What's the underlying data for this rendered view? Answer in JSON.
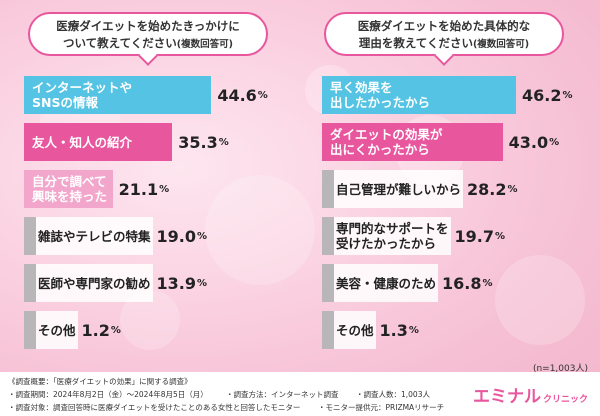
{
  "colors": {
    "blue": "#55c3e3",
    "pink": "#e8569e",
    "lightpink": "#f3a6cc",
    "gray": "#b8b6b8",
    "accent": "#e8569e"
  },
  "left_title": {
    "main": "医療ダイエットを始めたきっかけに",
    "sub": "ついて教えてください",
    "note": "(複数回答可)"
  },
  "right_title": {
    "main": "医療ダイエットを始めた具体的な",
    "sub": "理由を教えてください",
    "note": "(複数回答可)"
  },
  "chart_data": [
    {
      "type": "bar",
      "categories": [
        "インターネットやSNSの情報",
        "友人・知人の紹介",
        "自分で調べて興味を持った",
        "雑誌やテレビの特集",
        "医師や専門家の勧め",
        "その他"
      ],
      "labels": [
        [
          "インターネットや",
          "SNSの情報"
        ],
        [
          "友人・知人の紹介"
        ],
        [
          "自分で調べて",
          "興味を持った"
        ],
        [
          "雑誌やテレビの特集"
        ],
        [
          "医師や専門家の勧め"
        ],
        [
          "その他"
        ]
      ],
      "values": [
        44.6,
        35.3,
        21.1,
        19.0,
        13.9,
        1.2
      ],
      "display": [
        "44.6",
        "35.3",
        "21.1",
        "19.0",
        "13.9",
        "1.2"
      ],
      "bar_colors": [
        "blue",
        "pink",
        "lightpink",
        "gray",
        "gray",
        "gray"
      ],
      "unit": "%"
    },
    {
      "type": "bar",
      "categories": [
        "早く効果を出したかったから",
        "ダイエットの効果が出にくかったから",
        "自己管理が難しいから",
        "専門的なサポートを受けたかったから",
        "美容・健康のため",
        "その他"
      ],
      "labels": [
        [
          "早く効果を",
          "出したかったから"
        ],
        [
          "ダイエットの効果が",
          "出にくかったから"
        ],
        [
          "自己管理が難しいから"
        ],
        [
          "専門的なサポートを",
          "受けたかったから"
        ],
        [
          "美容・健康のため"
        ],
        [
          "その他"
        ]
      ],
      "values": [
        46.2,
        43.0,
        28.2,
        19.7,
        16.8,
        1.3
      ],
      "display": [
        "46.2",
        "43.0",
        "28.2",
        "19.7",
        "16.8",
        "1.3"
      ],
      "bar_colors": [
        "blue",
        "pink",
        "gray",
        "gray",
        "gray",
        "gray"
      ],
      "unit": "%"
    }
  ],
  "n_label": "(n=1,003人)",
  "footer": {
    "overview": "《調査概要：「医療ダイエットの効果」に関する調査》",
    "period": "・調査期間：2024年8月2日（金）〜2024年8月5日（月）",
    "method": "・調査方法：インターネット調査",
    "count": "・調査人数：1,003人",
    "target": "・調査対象：調査回答時に医療ダイエットを受けたことのある女性と回答したモニター",
    "provider": "・モニター提供元：PRIZMAリサーチ"
  },
  "logo": {
    "main": "エミナル",
    "sub": "クリニック"
  }
}
